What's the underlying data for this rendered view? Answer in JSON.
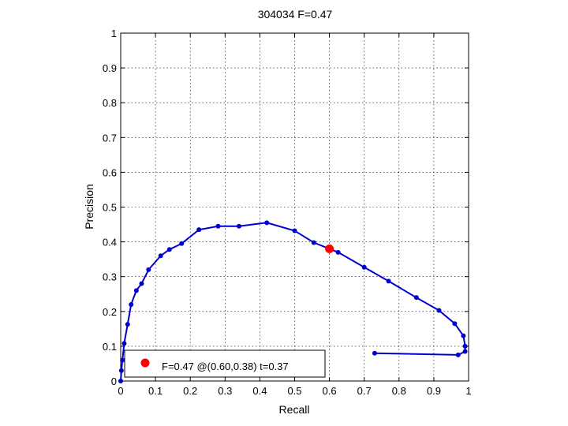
{
  "chart_data": {
    "type": "line",
    "title": "304034 F=0.47",
    "xlabel": "Recall",
    "ylabel": "Precision",
    "xlim": [
      0,
      1
    ],
    "ylim": [
      0,
      1
    ],
    "xticks": [
      "0",
      "0.1",
      "0.2",
      "0.3",
      "0.4",
      "0.5",
      "0.6",
      "0.7",
      "0.8",
      "0.9",
      "1"
    ],
    "yticks": [
      "0",
      "0.1",
      "0.2",
      "0.3",
      "0.4",
      "0.5",
      "0.6",
      "0.7",
      "0.8",
      "0.9",
      "1"
    ],
    "grid": true,
    "series": [
      {
        "color": "#0000cc",
        "points": [
          [
            0.73,
            0.08
          ],
          [
            0.97,
            0.075
          ],
          [
            0.99,
            0.085
          ],
          [
            0.99,
            0.1
          ],
          [
            0.985,
            0.13
          ],
          [
            0.96,
            0.165
          ],
          [
            0.915,
            0.203
          ],
          [
            0.85,
            0.24
          ],
          [
            0.77,
            0.287
          ],
          [
            0.7,
            0.327
          ],
          [
            0.625,
            0.37
          ],
          [
            0.555,
            0.398
          ],
          [
            0.5,
            0.432
          ],
          [
            0.42,
            0.455
          ],
          [
            0.34,
            0.445
          ],
          [
            0.28,
            0.445
          ],
          [
            0.225,
            0.435
          ],
          [
            0.175,
            0.395
          ],
          [
            0.14,
            0.378
          ],
          [
            0.115,
            0.36
          ],
          [
            0.08,
            0.32
          ],
          [
            0.06,
            0.28
          ],
          [
            0.045,
            0.26
          ],
          [
            0.03,
            0.22
          ],
          [
            0.02,
            0.163
          ],
          [
            0.01,
            0.108
          ],
          [
            0.005,
            0.06
          ],
          [
            0.002,
            0.03
          ],
          [
            0.0,
            0.0
          ]
        ]
      }
    ],
    "best_point": {
      "x": 0.6,
      "y": 0.38,
      "color": "#ff0000"
    },
    "legend": {
      "label": "F=0.47 @(0.60,0.38) t=0.37",
      "placement": "bottom-left"
    }
  }
}
